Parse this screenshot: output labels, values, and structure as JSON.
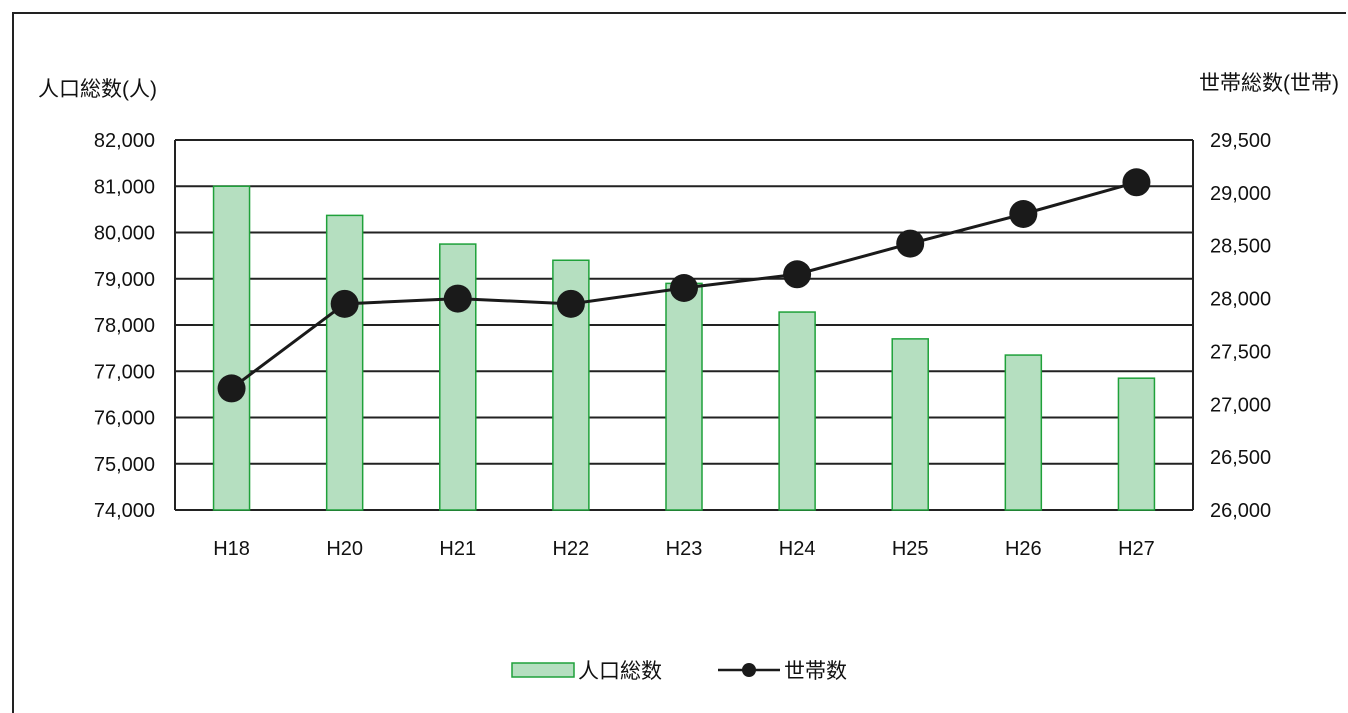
{
  "chart_data": {
    "type": "bar",
    "categories": [
      "H18",
      "H20",
      "H21",
      "H22",
      "H23",
      "H24",
      "H25",
      "H26",
      "H27"
    ],
    "series": [
      {
        "name": "人口総数",
        "type": "bar",
        "axis": "left",
        "values": [
          81000,
          80370,
          79750,
          79400,
          78900,
          78280,
          77700,
          77350,
          76850
        ]
      },
      {
        "name": "世帯数",
        "type": "line",
        "axis": "right",
        "values": [
          27150,
          27950,
          28000,
          27950,
          28100,
          28230,
          28520,
          28800,
          29100
        ]
      }
    ],
    "ylabel_left": "人口総数(人)",
    "ylabel_right": "世帯総数(世帯)",
    "ylim_left": [
      74000,
      82000
    ],
    "ylim_right": [
      26000,
      29500
    ],
    "yticks_left": [
      "82,000",
      "81,000",
      "80,000",
      "79,000",
      "78,000",
      "77,000",
      "76,000",
      "75,000",
      "74,000"
    ],
    "yticks_right": [
      "29,500",
      "29,000",
      "28,500",
      "28,000",
      "27,500",
      "27,000",
      "26,500",
      "26,000"
    ],
    "grid": true,
    "legend_position": "bottom-center",
    "colors": {
      "bar_fill": "#b5dfc0",
      "bar_stroke": "#1fa13a",
      "line": "#1a1a1a",
      "grid": "#222222"
    }
  }
}
